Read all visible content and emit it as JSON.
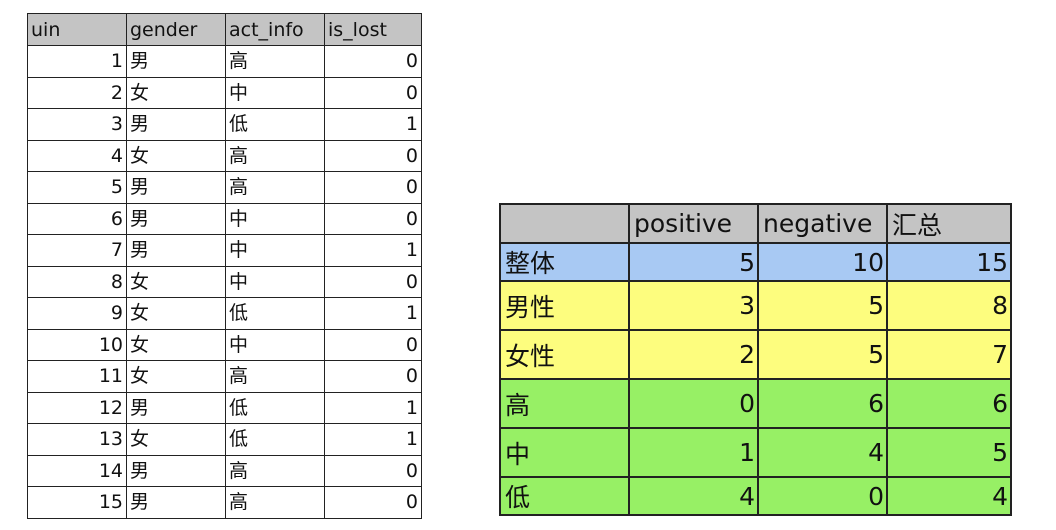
{
  "raw_table": {
    "headers": [
      "uin",
      "gender",
      "act_info",
      "is_lost"
    ],
    "rows": [
      [
        "1",
        "男",
        "高",
        "0"
      ],
      [
        "2",
        "女",
        "中",
        "0"
      ],
      [
        "3",
        "男",
        "低",
        "1"
      ],
      [
        "4",
        "女",
        "高",
        "0"
      ],
      [
        "5",
        "男",
        "高",
        "0"
      ],
      [
        "6",
        "男",
        "中",
        "0"
      ],
      [
        "7",
        "男",
        "中",
        "1"
      ],
      [
        "8",
        "女",
        "中",
        "0"
      ],
      [
        "9",
        "女",
        "低",
        "1"
      ],
      [
        "10",
        "女",
        "中",
        "0"
      ],
      [
        "11",
        "女",
        "高",
        "0"
      ],
      [
        "12",
        "男",
        "低",
        "1"
      ],
      [
        "13",
        "女",
        "低",
        "1"
      ],
      [
        "14",
        "男",
        "高",
        "0"
      ],
      [
        "15",
        "男",
        "高",
        "0"
      ]
    ]
  },
  "summary_table": {
    "headers": [
      "",
      "positive",
      "negative",
      "汇总"
    ],
    "rows": [
      {
        "label": "整体",
        "values": [
          "5",
          "10",
          "15"
        ],
        "color": "#a8c9f3"
      },
      {
        "label": "男性",
        "values": [
          "3",
          "5",
          "8"
        ],
        "color": "#fdfd7e"
      },
      {
        "label": "女性",
        "values": [
          "2",
          "5",
          "7"
        ],
        "color": "#fdfd7e"
      },
      {
        "label": "高",
        "values": [
          "0",
          "6",
          "6"
        ],
        "color": "#97f065"
      },
      {
        "label": "中",
        "values": [
          "1",
          "4",
          "5"
        ],
        "color": "#97f065"
      },
      {
        "label": "低",
        "values": [
          "4",
          "0",
          "4"
        ],
        "color": "#97f065"
      }
    ],
    "header_color": "#c4c4c4"
  }
}
